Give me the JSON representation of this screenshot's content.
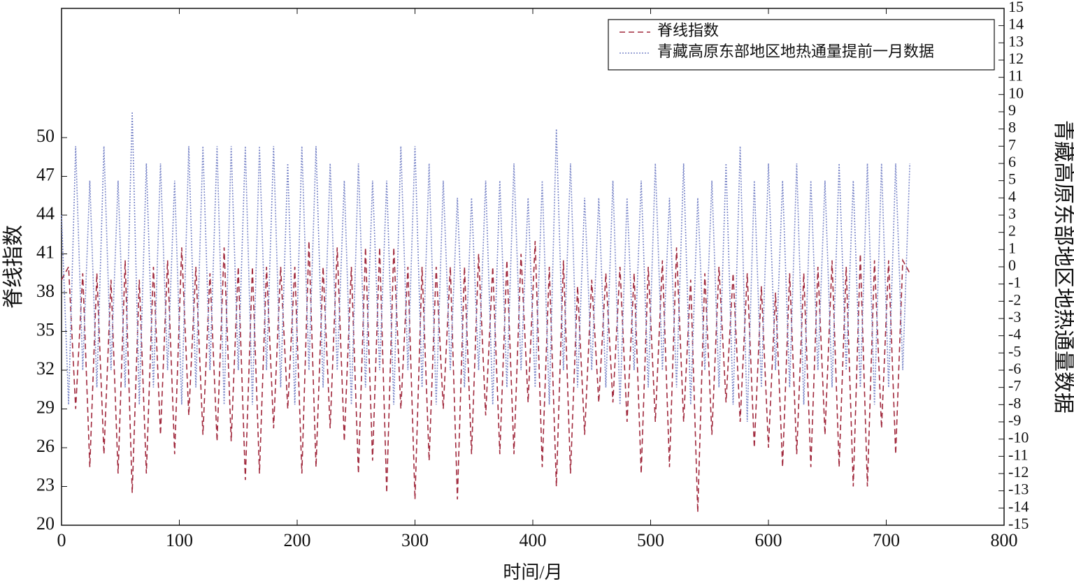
{
  "chart_data": {
    "type": "line",
    "xlabel": "时间/月",
    "ylabel": "脊线指数",
    "y2label": "青藏高原东部地区地热通量数据",
    "xlim": [
      0,
      800
    ],
    "xticks": [
      0,
      100,
      200,
      300,
      400,
      500,
      600,
      700,
      800
    ],
    "ylim": [
      20,
      60
    ],
    "yticks": [
      20,
      23,
      26,
      29,
      32,
      35,
      38,
      41,
      44,
      47,
      50
    ],
    "y2lim": [
      -15,
      15
    ],
    "y2ticks": [
      -15,
      -14,
      -13,
      -12,
      -11,
      -10,
      -9,
      -8,
      -7,
      -6,
      -5,
      -4,
      -3,
      -2,
      -1,
      0,
      1,
      2,
      3,
      4,
      5,
      6,
      7,
      8,
      9,
      10,
      11,
      12,
      13,
      14,
      15
    ],
    "legend": "upper right",
    "x": [
      0,
      6,
      12,
      18,
      24,
      30,
      36,
      42,
      48,
      54,
      60,
      66,
      72,
      78,
      84,
      90,
      96,
      102,
      108,
      114,
      120,
      126,
      132,
      138,
      144,
      150,
      156,
      162,
      168,
      174,
      180,
      186,
      192,
      198,
      204,
      210,
      216,
      222,
      228,
      234,
      240,
      246,
      252,
      258,
      264,
      270,
      276,
      282,
      288,
      294,
      300,
      306,
      312,
      318,
      324,
      330,
      336,
      342,
      348,
      354,
      360,
      366,
      372,
      378,
      384,
      390,
      396,
      402,
      408,
      414,
      420,
      426,
      432,
      438,
      444,
      450,
      456,
      462,
      468,
      474,
      480,
      486,
      492,
      498,
      504,
      510,
      516,
      522,
      528,
      534,
      540,
      546,
      552,
      558,
      564,
      570,
      576,
      582,
      588,
      594,
      600,
      606,
      612,
      618,
      624,
      630,
      636,
      642,
      648,
      654,
      660,
      666,
      672,
      678,
      684,
      690,
      696,
      702,
      708,
      714,
      720
    ],
    "series": [
      {
        "name": "脊线指数",
        "color": "#a0283c",
        "dash": "8,5",
        "values": [
          39,
          40,
          29,
          39.5,
          24.5,
          39.5,
          25.5,
          39,
          24,
          40.5,
          22.5,
          39,
          24,
          40,
          27,
          40.5,
          25.5,
          41.5,
          28.5,
          40,
          27,
          39.5,
          26.5,
          41.5,
          26.5,
          40,
          23.5,
          40,
          24,
          40,
          27.5,
          40,
          29,
          40,
          24,
          42,
          24.5,
          40,
          27.5,
          41.5,
          26.5,
          40,
          24,
          41.5,
          25,
          41.5,
          22.5,
          41.5,
          29,
          40,
          22,
          40,
          25,
          40,
          29,
          40,
          22,
          40,
          25.5,
          41,
          28.5,
          40,
          25.5,
          40.5,
          25.5,
          41,
          29.5,
          42,
          24.5,
          40,
          23,
          40.5,
          24,
          38.5,
          27,
          39,
          29.5,
          39.5,
          29.5,
          40,
          28,
          39.5,
          24,
          40,
          28,
          40.5,
          24.5,
          41.5,
          28,
          39,
          21,
          39.5,
          27,
          40,
          29.5,
          39.5,
          28,
          39.5,
          26,
          38.5,
          26,
          38,
          24.5,
          39.5,
          25.5,
          39.5,
          24.5,
          40,
          27,
          40.5,
          24.5,
          40,
          23,
          41,
          23,
          40.5,
          27.5,
          40.5,
          25.5,
          40.5,
          39.5
        ]
      },
      {
        "name": "青藏高原东部地区地热通量提前一月数据",
        "color": "#7a86c8",
        "dash": "2,2",
        "axis": "y2",
        "values": [
          3,
          -8,
          7,
          -6,
          5,
          -7,
          7,
          -6,
          5,
          -7,
          9,
          -8,
          6,
          -7,
          6,
          -6,
          5,
          -8,
          7,
          -7,
          7,
          -6,
          7,
          -8,
          7,
          -6,
          7,
          -8,
          7,
          -6,
          7,
          -7,
          6,
          -8,
          7,
          -6,
          7,
          -7,
          6,
          -6,
          5,
          -8,
          6,
          -7,
          5,
          -6,
          5,
          -8,
          7,
          -6,
          7,
          -7,
          6,
          -8,
          5,
          -6,
          4,
          -7,
          4,
          -6,
          5,
          -8,
          5,
          -7,
          6,
          -6,
          4,
          -7,
          5,
          -8,
          8,
          -6,
          6,
          -7,
          4,
          -6,
          4,
          -7,
          5,
          -8,
          4,
          -6,
          5,
          -7,
          6,
          -6,
          4,
          -7,
          6,
          -8,
          4,
          -6,
          5,
          -7,
          6,
          -8,
          7,
          -9,
          5,
          -7,
          6,
          -6,
          5,
          -7,
          6,
          -8,
          5,
          -6,
          5,
          -7,
          6,
          -6,
          5,
          -7,
          6,
          -8,
          6,
          -7,
          6,
          -6,
          6
        ]
      }
    ]
  }
}
